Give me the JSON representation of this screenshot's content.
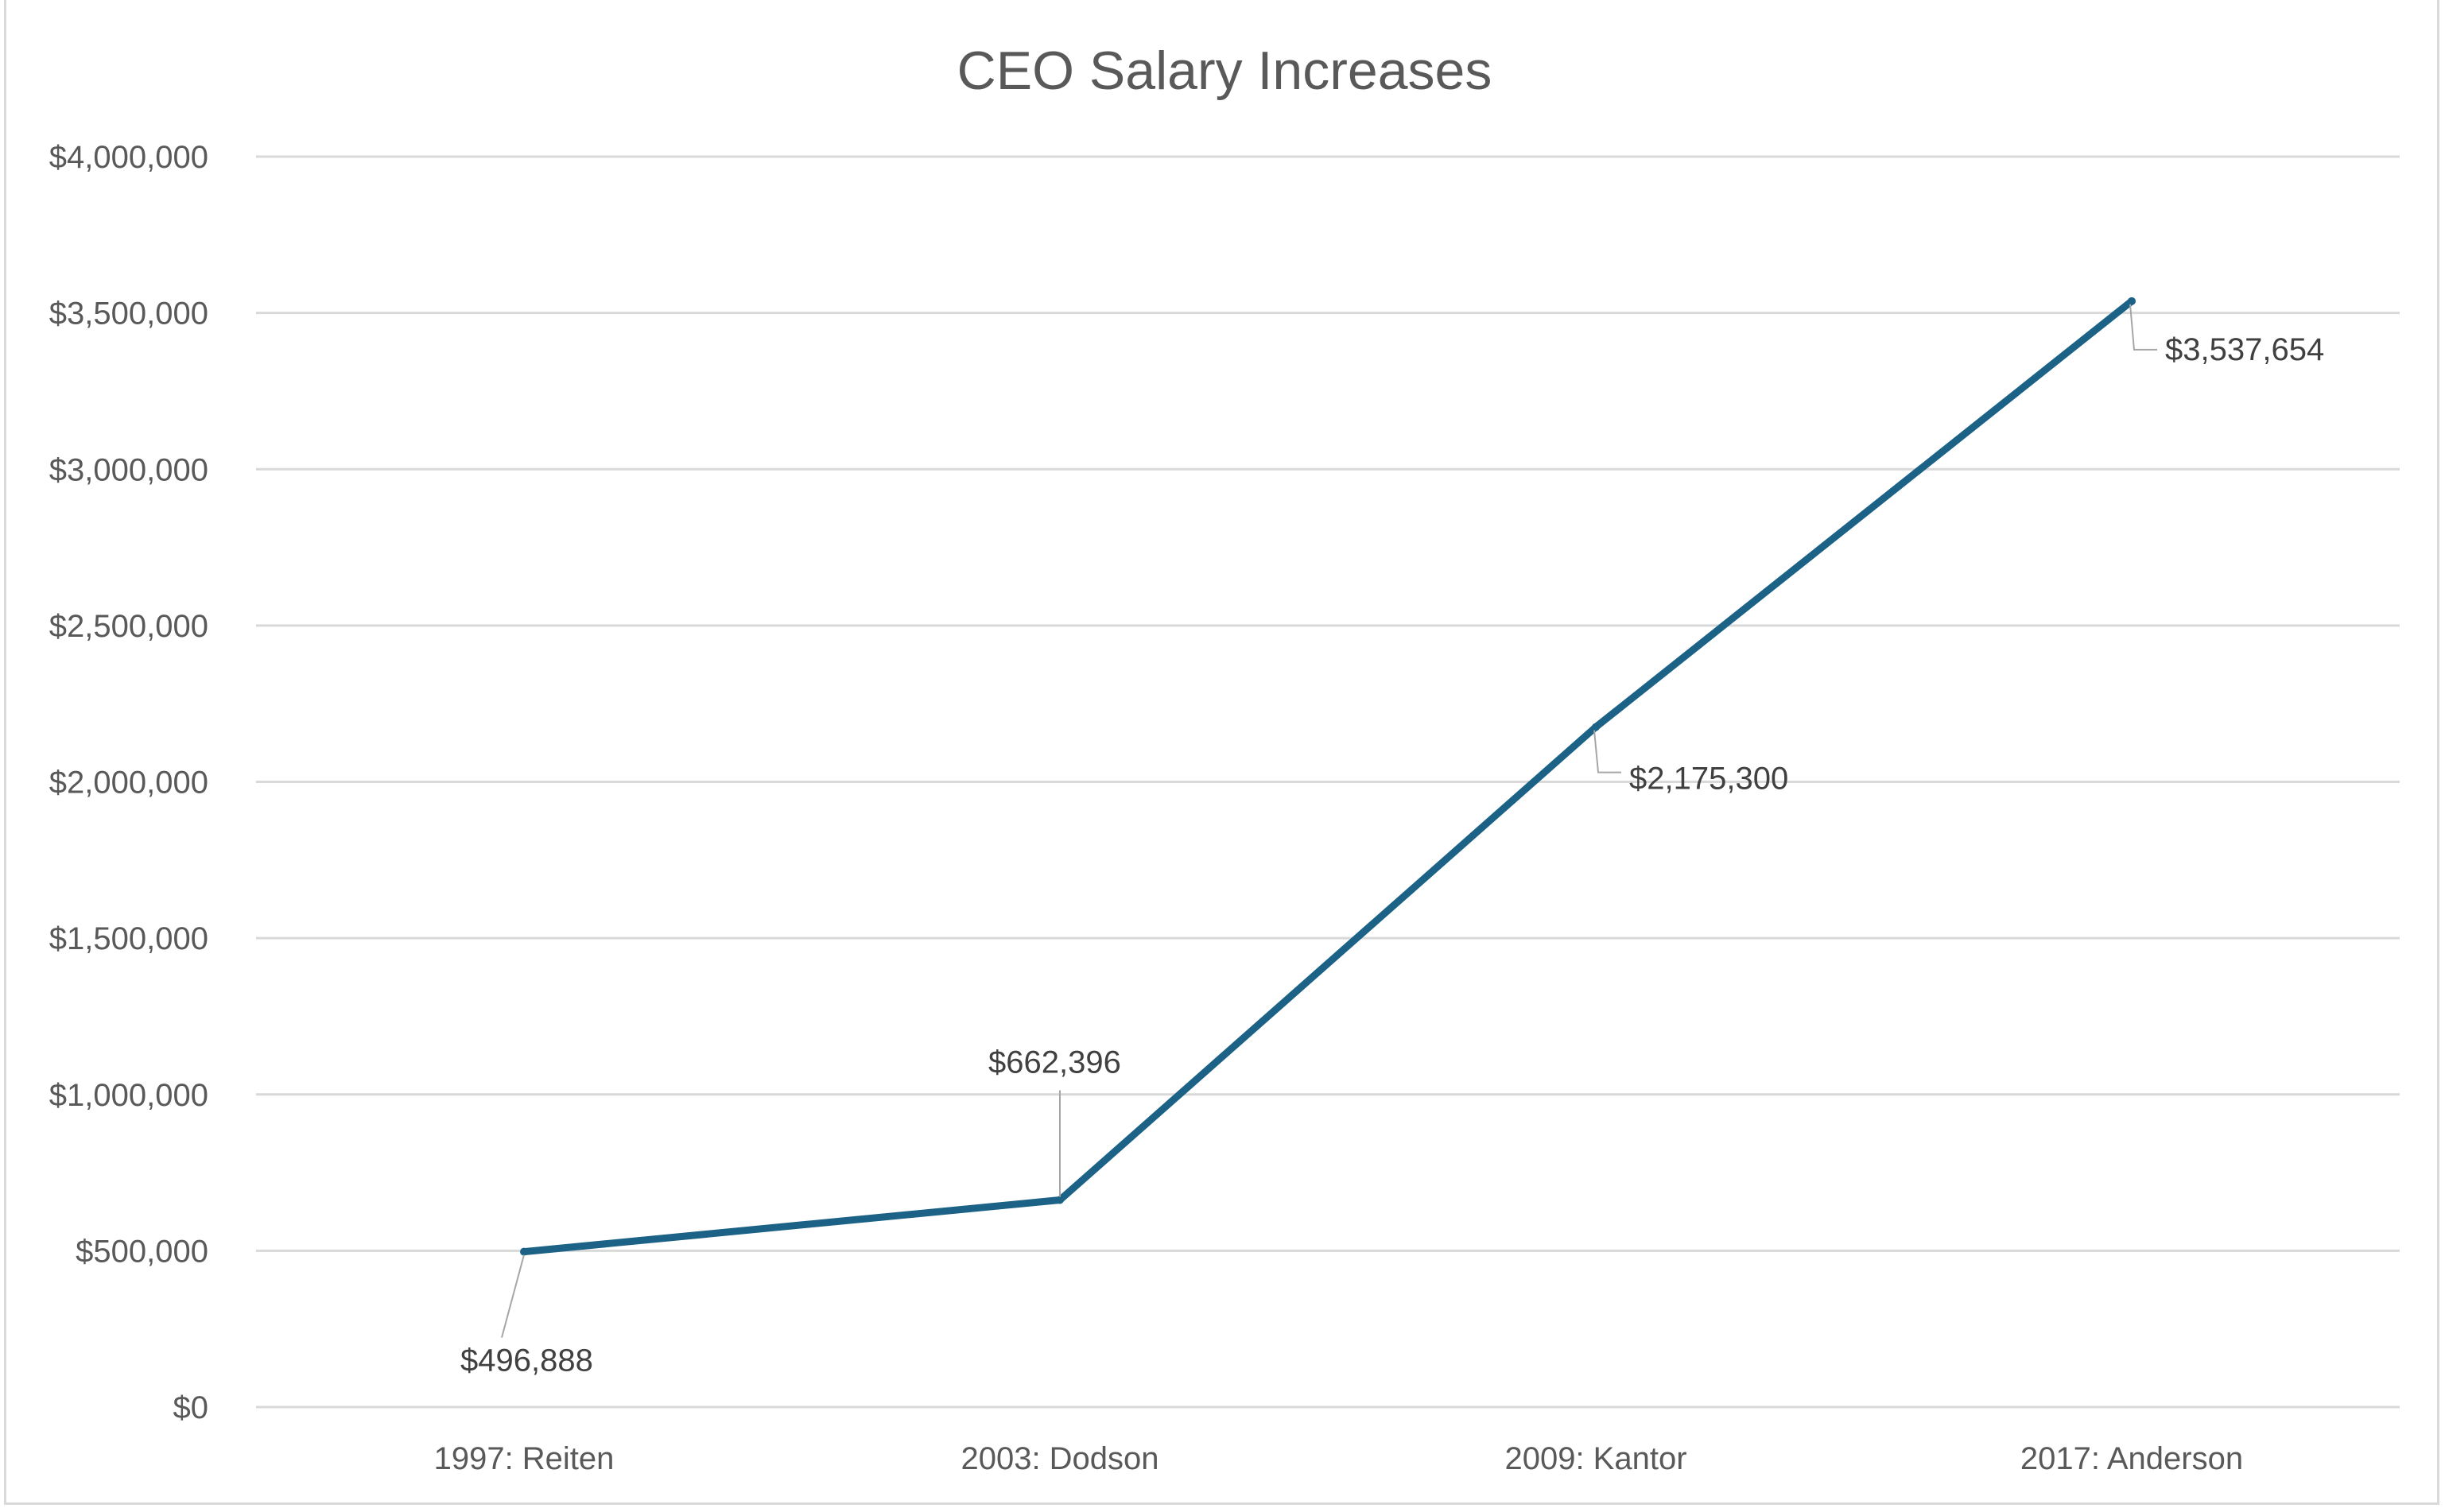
{
  "chart_data": {
    "type": "line",
    "title": "CEO Salary Increases",
    "xlabel": "",
    "ylabel": "",
    "categories": [
      "1997: Reiten",
      "2003: Dodson",
      "2009: Kantor",
      "2017: Anderson"
    ],
    "series": [
      {
        "name": "CEO Salary",
        "values": [
          496888,
          662396,
          2175300,
          3537654
        ],
        "data_labels": [
          "$496,888",
          "$662,396",
          "$2,175,300",
          "$3,537,654"
        ],
        "color": "#1b6286"
      }
    ],
    "ylim": [
      0,
      4000000
    ],
    "yticks": [
      0,
      500000,
      1000000,
      1500000,
      2000000,
      2500000,
      3000000,
      3500000,
      4000000
    ],
    "ytick_labels": [
      "$0",
      "$500,000",
      "$1,000,000",
      "$1,500,000",
      "$2,000,000",
      "$2,500,000",
      "$3,000,000",
      "$3,500,000",
      "$4,000,000"
    ],
    "grid": true,
    "legend": "none"
  }
}
